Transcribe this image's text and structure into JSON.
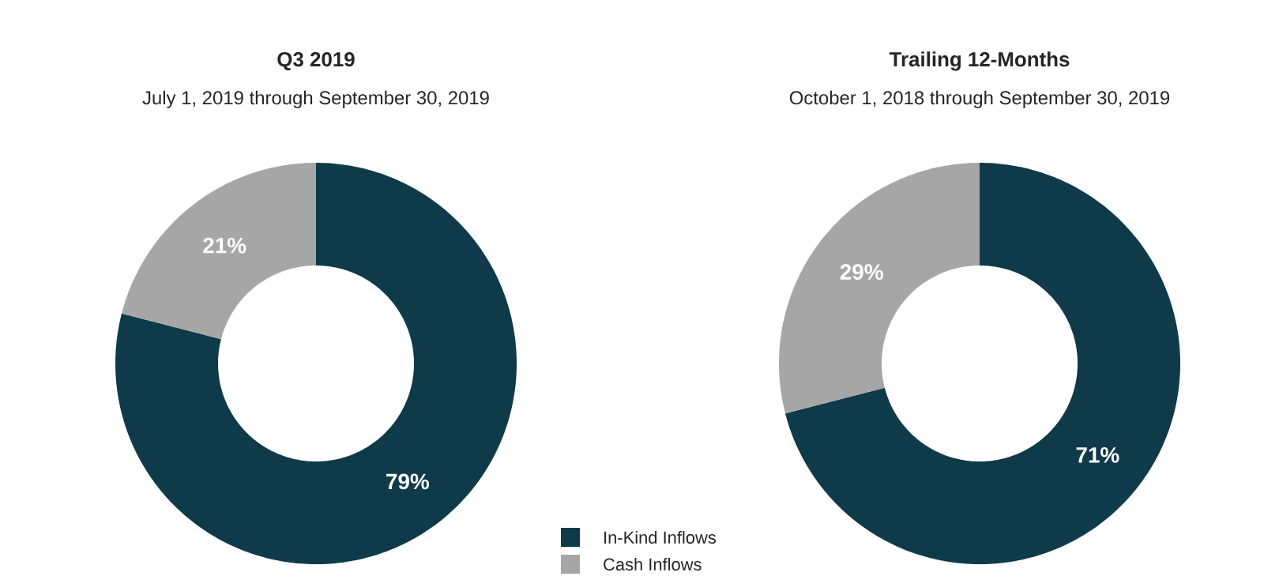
{
  "chart_data": [
    {
      "type": "donut",
      "title": "Q3 2019",
      "subtitle": "July 1, 2019 through September 30, 2019",
      "categories": [
        "In-Kind Inflows",
        "Cash Inflows"
      ],
      "values": [
        79,
        21
      ],
      "colors": [
        "#0e3a4a",
        "#a6a6a6"
      ],
      "value_labels": [
        "79%",
        "21%"
      ],
      "legend": "bottom right"
    },
    {
      "type": "donut",
      "title": "Trailing 12-Months",
      "subtitle": "October 1, 2018 through September 30, 2019",
      "categories": [
        null,
        null
      ],
      "values": [
        71,
        29
      ],
      "colors": [
        "#0e3a4a",
        "#a6a6a6"
      ],
      "value_labels": [
        "71%",
        "29%"
      ]
    }
  ]
}
